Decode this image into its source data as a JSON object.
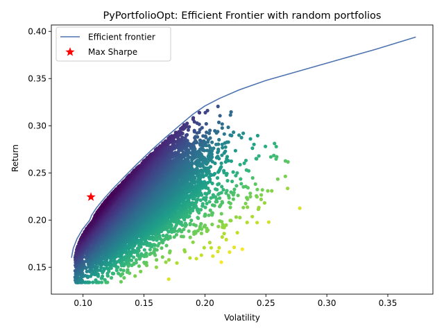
{
  "chart_data": {
    "type": "scatter",
    "title": "PyPortfolioOpt: Efficient Frontier with random portfolios",
    "xlabel": "Volatility",
    "ylabel": "Return",
    "xlim": [
      0.074,
      0.387
    ],
    "ylim": [
      0.1215,
      0.4068
    ],
    "xticks": [
      0.1,
      0.15,
      0.2,
      0.25,
      0.3,
      0.35
    ],
    "xtick_labels": [
      "0.10",
      "0.15",
      "0.20",
      "0.25",
      "0.30",
      "0.35"
    ],
    "yticks": [
      0.15,
      0.2,
      0.25,
      0.3,
      0.35,
      0.4
    ],
    "ytick_labels": [
      "0.15",
      "0.20",
      "0.25",
      "0.30",
      "0.35",
      "0.40"
    ],
    "grid": false,
    "legend": {
      "position": "top-left",
      "entries": [
        {
          "label": "Efficient frontier",
          "marker": "line",
          "color": "#4c72b0"
        },
        {
          "label": "Max Sharpe",
          "marker": "star",
          "color": "#ff0000"
        }
      ]
    },
    "series": [
      {
        "name": "Efficient frontier",
        "kind": "line",
        "color": "#4c72b0",
        "points": [
          [
            0.0905,
            0.16
          ],
          [
            0.092,
            0.17
          ],
          [
            0.095,
            0.18
          ],
          [
            0.0995,
            0.19
          ],
          [
            0.1055,
            0.2
          ],
          [
            0.107,
            0.205
          ],
          [
            0.111,
            0.213
          ],
          [
            0.118,
            0.224
          ],
          [
            0.125,
            0.234
          ],
          [
            0.134,
            0.246
          ],
          [
            0.144,
            0.259
          ],
          [
            0.156,
            0.274
          ],
          [
            0.168,
            0.288
          ],
          [
            0.179,
            0.3
          ],
          [
            0.19,
            0.312
          ],
          [
            0.2,
            0.321
          ],
          [
            0.212,
            0.329
          ],
          [
            0.228,
            0.338
          ],
          [
            0.25,
            0.348
          ],
          [
            0.28,
            0.359
          ],
          [
            0.31,
            0.37
          ],
          [
            0.34,
            0.381
          ],
          [
            0.373,
            0.394
          ]
        ]
      },
      {
        "name": "Max Sharpe",
        "kind": "marker",
        "marker": "star",
        "color": "#ff0000",
        "points": [
          [
            0.1065,
            0.2245
          ]
        ]
      }
    ],
    "random_portfolios": {
      "count": 10000,
      "color_scale": "viridis (dark purple = highest Sharpe ratio, yellow = lowest)",
      "x_range": [
        0.092,
        0.278
      ],
      "y_range": [
        0.134,
        0.337
      ]
    }
  }
}
